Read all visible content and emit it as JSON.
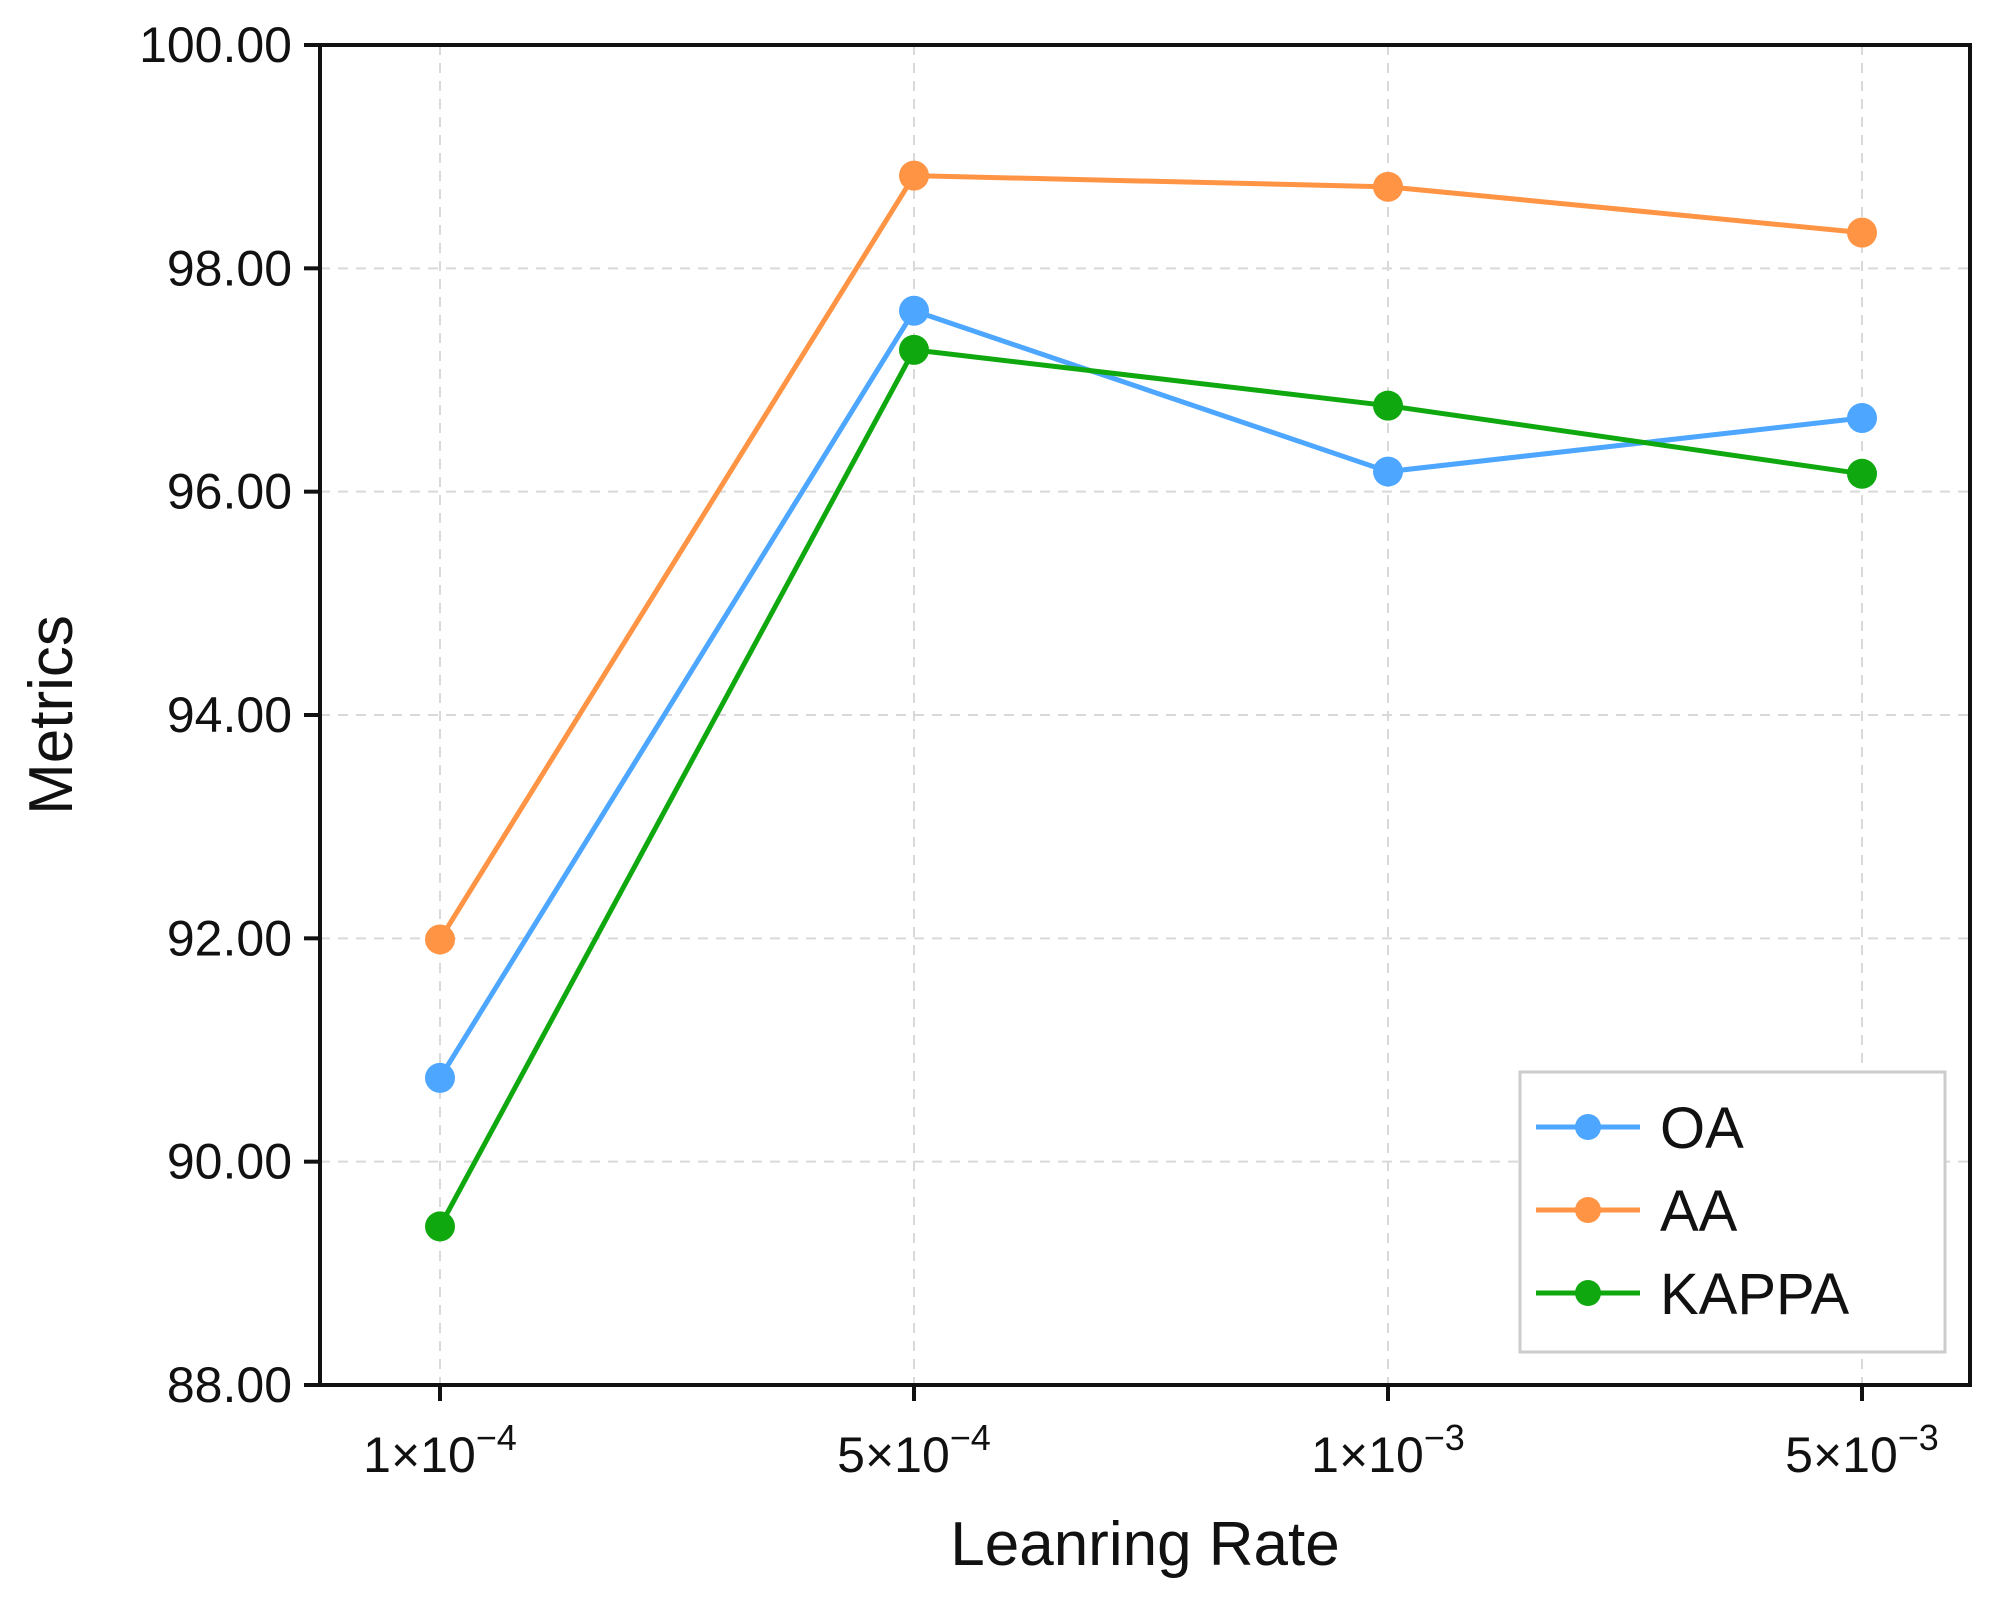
{
  "chart_data": {
    "type": "line",
    "title": "",
    "xlabel": "Leanring Rate",
    "ylabel": "Metrics",
    "categories": [
      {
        "base": "1×10",
        "exp": "−4"
      },
      {
        "base": "5×10",
        "exp": "−4"
      },
      {
        "base": "1×10",
        "exp": "−3"
      },
      {
        "base": "5×10",
        "exp": "−3"
      }
    ],
    "ylim": [
      88,
      100
    ],
    "yticks": [
      88,
      90,
      92,
      94,
      96,
      98,
      100
    ],
    "ytick_labels": [
      "88.00",
      "90.00",
      "92.00",
      "94.00",
      "96.00",
      "98.00",
      "100.00"
    ],
    "grid": true,
    "legend_position": "bottom-right",
    "series": [
      {
        "name": "OA",
        "color": "#4da6ff",
        "values": [
          90.75,
          97.62,
          96.18,
          96.66
        ]
      },
      {
        "name": "AA",
        "color": "#ff9445",
        "values": [
          91.99,
          98.83,
          98.73,
          98.32
        ]
      },
      {
        "name": "KAPPA",
        "color": "#0fa80f",
        "values": [
          89.42,
          97.27,
          96.77,
          96.16
        ]
      }
    ]
  }
}
